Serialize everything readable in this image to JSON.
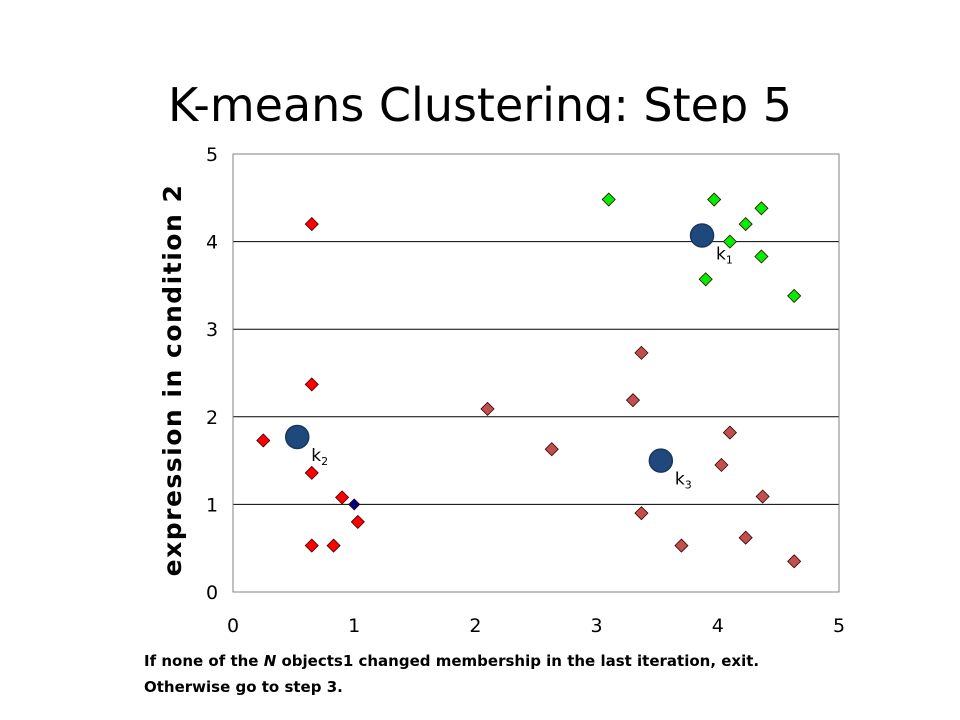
{
  "slide": {
    "title": "K-means Clustering: Step 5"
  },
  "caption": {
    "line1_before": "If none of the ",
    "line1_emph": "N",
    "line1_after": " objects1 changed membership in the last iteration, exit.",
    "line2": "Otherwise go to step 3."
  },
  "chart_data": {
    "type": "scatter",
    "title": "",
    "xlabel": "",
    "ylabel": "expression in condition 2",
    "xlim": [
      0,
      5
    ],
    "ylim": [
      0,
      5
    ],
    "x_ticks": [
      "0",
      "1",
      "2",
      "3",
      "4",
      "5"
    ],
    "y_ticks": [
      "0",
      "1",
      "2",
      "3",
      "4",
      "5"
    ],
    "grid": "horizontal",
    "legend": "none",
    "series": [
      {
        "marker": "diamond",
        "color": "#ff0000",
        "points": [
          [
            0.65,
            4.2
          ],
          [
            0.65,
            2.37
          ],
          [
            0.25,
            1.73
          ],
          [
            0.65,
            1.36
          ],
          [
            0.9,
            1.08
          ],
          [
            1.03,
            0.8
          ],
          [
            0.65,
            0.53
          ],
          [
            0.83,
            0.53
          ]
        ]
      },
      {
        "marker": "diamond",
        "color": "#00ee00",
        "points": [
          [
            3.1,
            4.48
          ],
          [
            3.97,
            4.48
          ],
          [
            4.36,
            4.38
          ],
          [
            4.23,
            4.2
          ],
          [
            4.1,
            4.0
          ],
          [
            4.36,
            3.83
          ],
          [
            3.9,
            3.57
          ],
          [
            4.63,
            3.38
          ]
        ]
      },
      {
        "marker": "diamond",
        "color": "#c0504d",
        "points": [
          [
            3.37,
            2.73
          ],
          [
            2.1,
            2.09
          ],
          [
            3.3,
            2.19
          ],
          [
            2.63,
            1.63
          ],
          [
            4.1,
            1.82
          ],
          [
            4.03,
            1.45
          ],
          [
            4.37,
            1.09
          ],
          [
            3.37,
            0.9
          ],
          [
            4.23,
            0.62
          ],
          [
            3.7,
            0.53
          ],
          [
            4.63,
            0.35
          ]
        ]
      },
      {
        "marker": "diamond",
        "color": "#000080",
        "points": [
          [
            1.0,
            1.0
          ]
        ]
      }
    ],
    "centroids": {
      "color": "#1f497d",
      "points": [
        {
          "label": "k",
          "sub": "1",
          "x": 3.87,
          "y": 4.07
        },
        {
          "label": "k",
          "sub": "2",
          "x": 0.53,
          "y": 1.77
        },
        {
          "label": "k",
          "sub": "3",
          "x": 3.53,
          "y": 1.5
        }
      ]
    }
  }
}
